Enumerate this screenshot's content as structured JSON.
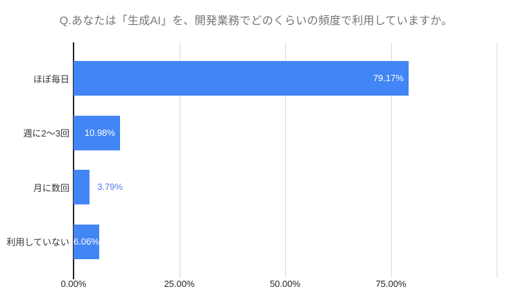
{
  "title": "Q.あなたは「生成AI」を、開発業務でどのくらいの頻度で利用していますか。",
  "chart_data": {
    "type": "bar",
    "orientation": "horizontal",
    "title": "Q.あなたは「生成AI」を、開発業務でどのくらいの頻度で利用していますか。",
    "categories": [
      "ほぼ毎日",
      "週に2〜3回",
      "月に数回",
      "利用していない"
    ],
    "values": [
      79.17,
      10.98,
      3.79,
      6.06
    ],
    "value_labels": [
      "79.17%",
      "10.98%",
      "3.79%",
      "6.06%"
    ],
    "annotation_positions": [
      "inside",
      "inside",
      "outside",
      "inside"
    ],
    "xlabel": "",
    "ylabel": "",
    "xlim": [
      0,
      100
    ],
    "x_ticks": [
      {
        "value": 0,
        "label": "0.00%"
      },
      {
        "value": 25,
        "label": "25.00%"
      },
      {
        "value": 50,
        "label": "50.00%"
      },
      {
        "value": 75,
        "label": "75.00%"
      }
    ],
    "gridline_values": [
      25,
      50,
      75,
      100
    ],
    "grid": true,
    "legend": "none",
    "colors": {
      "bar": "#4285f4",
      "annotation_inside": "#ffffff",
      "annotation_outside": "#4d7de8",
      "title": "#757575",
      "axis_line": "#212121",
      "gridline": "#d9d9d9",
      "tick_label": "#222222",
      "category_label": "#333333",
      "background": "#ffffff"
    }
  }
}
